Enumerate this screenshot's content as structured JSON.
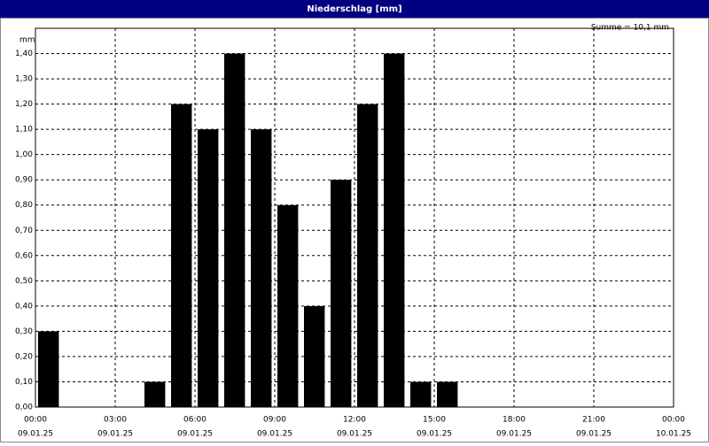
{
  "chart_data": {
    "type": "histogram",
    "title": "Niederschlag [mm]",
    "annotation": "Summe = 10,1 mm",
    "y_label": "mm",
    "bins": [
      0,
      1,
      2,
      3,
      4,
      5,
      6,
      7,
      8,
      9,
      10,
      11,
      12,
      13,
      14,
      15,
      16
    ],
    "values": [
      0.3,
      0,
      0,
      0,
      0.1,
      1.2,
      1.1,
      1.4,
      1.1,
      0.8,
      0.4,
      0.9,
      1.2,
      1.4,
      0.1,
      0.1
    ],
    "color": "#000000",
    "xlim": [
      0,
      24
    ],
    "xticks": [
      {
        "value": 0,
        "label": "00:00",
        "sublabel": "09.01.25"
      },
      {
        "value": 3,
        "label": "03:00",
        "sublabel": "09.01.25"
      },
      {
        "value": 6,
        "label": "06:00",
        "sublabel": "09.01.25"
      },
      {
        "value": 9,
        "label": "09:00",
        "sublabel": "09.01.25"
      },
      {
        "value": 12,
        "label": "12:00",
        "sublabel": "09.01.25"
      },
      {
        "value": 15,
        "label": "15:00",
        "sublabel": "09.01.25"
      },
      {
        "value": 18,
        "label": "18:00",
        "sublabel": "09.01.25"
      },
      {
        "value": 21,
        "label": "21:00",
        "sublabel": "09.01.25"
      },
      {
        "value": 24,
        "label": "00:00",
        "sublabel": "10.01.25"
      }
    ],
    "ylim": [
      0,
      1.5
    ],
    "yticks": [
      {
        "value": 0,
        "label": "0,00"
      },
      {
        "value": 0.1,
        "label": "0,10"
      },
      {
        "value": 0.2,
        "label": "0,20"
      },
      {
        "value": 0.3,
        "label": "0,30"
      },
      {
        "value": 0.4,
        "label": "0,40"
      },
      {
        "value": 0.5,
        "label": "0,50"
      },
      {
        "value": 0.6,
        "label": "0,60"
      },
      {
        "value": 0.7,
        "label": "0,70"
      },
      {
        "value": 0.8,
        "label": "0,80"
      },
      {
        "value": 0.9,
        "label": "0,90"
      },
      {
        "value": 1.0,
        "label": "1,00"
      },
      {
        "value": 1.1,
        "label": "1,10"
      },
      {
        "value": 1.2,
        "label": "1,20"
      },
      {
        "value": 1.3,
        "label": "1,30"
      },
      {
        "value": 1.4,
        "label": "1,40"
      }
    ],
    "grid": true
  }
}
